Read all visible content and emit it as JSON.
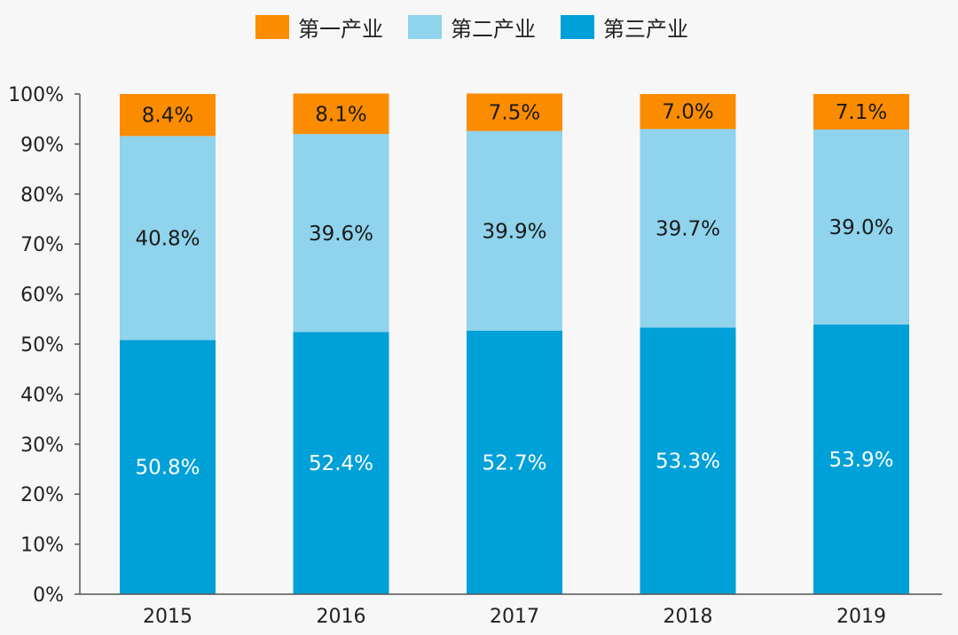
{
  "chart_data": {
    "type": "bar",
    "stacked": true,
    "title": "",
    "xlabel": "",
    "ylabel": "",
    "categories": [
      "2015",
      "2016",
      "2017",
      "2018",
      "2019"
    ],
    "series": [
      {
        "name": "第三产业",
        "values": [
          50.8,
          52.4,
          52.7,
          53.3,
          53.9
        ],
        "labels": [
          "50.8%",
          "52.4%",
          "52.7%",
          "53.3%",
          "53.9%"
        ],
        "color": "#00a0d8",
        "label_color": "#ffffff"
      },
      {
        "name": "第二产业",
        "values": [
          40.8,
          39.6,
          39.9,
          39.7,
          39.0
        ],
        "labels": [
          "40.8%",
          "39.6%",
          "39.9%",
          "39.7%",
          "39.0%"
        ],
        "color": "#8fd3ec",
        "label_color": "#1a1a1a"
      },
      {
        "name": "第一产业",
        "values": [
          8.4,
          8.1,
          7.5,
          7.0,
          7.1
        ],
        "labels": [
          "8.4%",
          "8.1%",
          "7.5%",
          "7.0%",
          "7.1%"
        ],
        "color": "#fb8c00",
        "label_color": "#1a1a1a"
      }
    ],
    "legend_order": [
      "第一产业",
      "第二产业",
      "第三产业"
    ],
    "legend_position": "top-center",
    "ylim": [
      0,
      100
    ],
    "yticks": [
      0,
      10,
      20,
      30,
      40,
      50,
      60,
      70,
      80,
      90,
      100
    ],
    "ytick_labels": [
      "0%",
      "10%",
      "20%",
      "30%",
      "40%",
      "50%",
      "60%",
      "70%",
      "80%",
      "90%",
      "100%"
    ],
    "grid": false
  }
}
